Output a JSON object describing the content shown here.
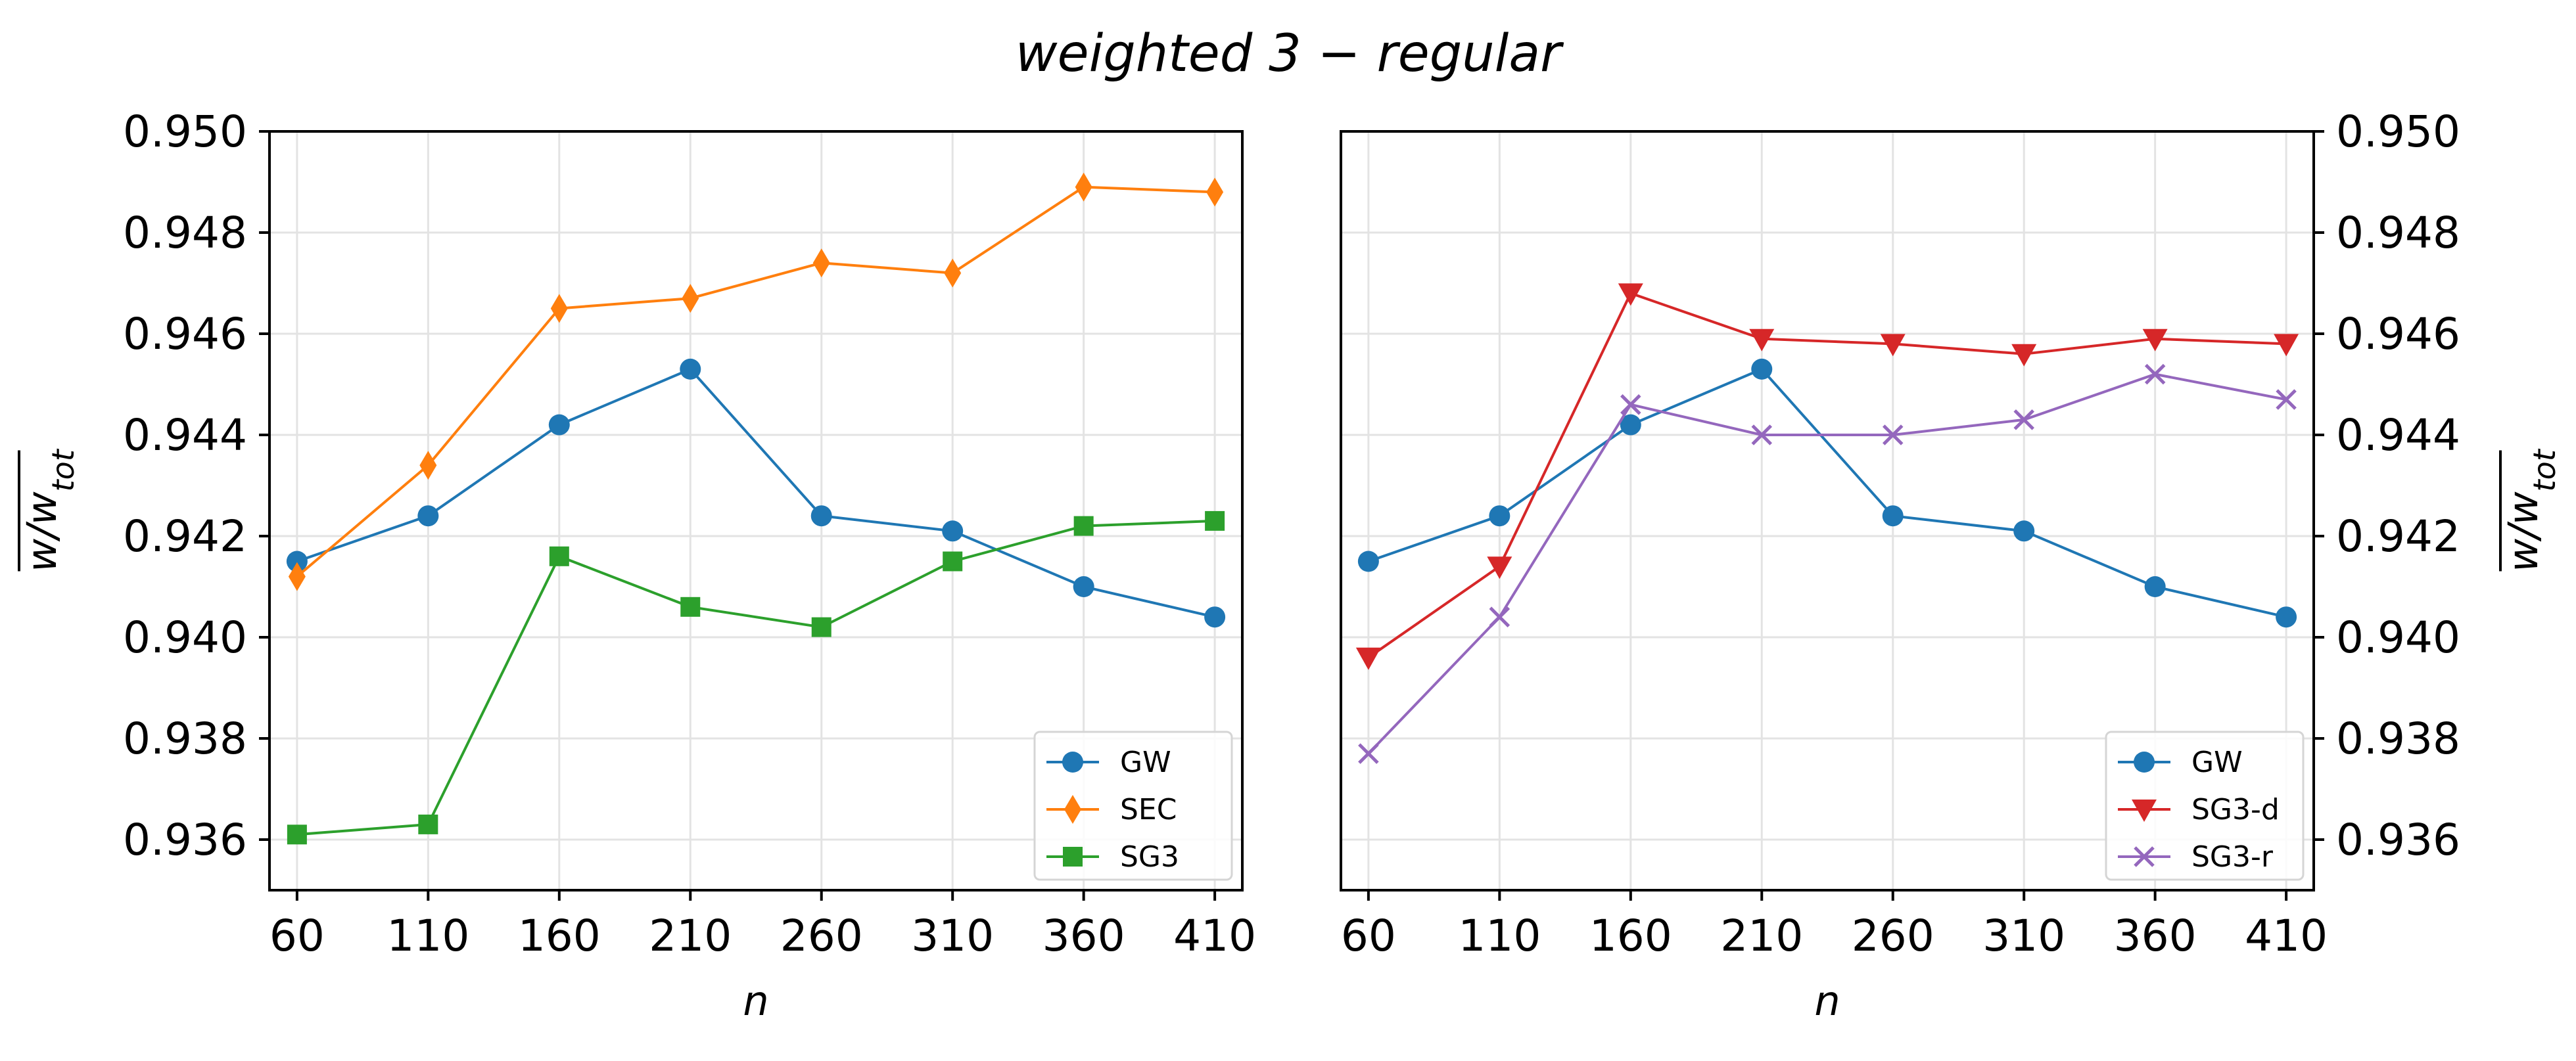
{
  "figure": {
    "title": "weighted 3 − regular"
  },
  "colors": {
    "GW": "#1f77b4",
    "SEC": "#ff7f0e",
    "SG3": "#2ca02c",
    "SG3-d": "#d62728",
    "SG3-r": "#9467bd"
  },
  "chart_data": [
    {
      "type": "line",
      "xlabel": "n",
      "ylabel": "w/w_tot (overlined)",
      "ylabel_main": "w/w",
      "ylabel_sub": "tot",
      "categories": [
        "60",
        "110",
        "160",
        "210",
        "260",
        "310",
        "360",
        "410"
      ],
      "x": [
        60,
        110,
        160,
        210,
        260,
        310,
        360,
        410
      ],
      "ylim": [
        0.935,
        0.95
      ],
      "yticks": [
        0.936,
        0.938,
        0.94,
        0.942,
        0.944,
        0.946,
        0.948,
        0.95
      ],
      "ytick_labels": [
        "0.936",
        "0.938",
        "0.940",
        "0.942",
        "0.944",
        "0.946",
        "0.948",
        "0.950"
      ],
      "yaxis_side": "left",
      "grid": true,
      "legend": "bottom-right",
      "series": [
        {
          "name": "GW",
          "marker": "circle",
          "values": [
            0.9415,
            0.9424,
            0.9442,
            0.9453,
            0.9424,
            0.9421,
            0.941,
            0.9404
          ]
        },
        {
          "name": "SEC",
          "marker": "thin_diamond",
          "values": [
            0.9412,
            0.9434,
            0.9465,
            0.9467,
            0.9474,
            0.9472,
            0.9489,
            0.9488
          ]
        },
        {
          "name": "SG3",
          "marker": "square",
          "values": [
            0.9361,
            0.9363,
            0.9416,
            0.9406,
            0.9402,
            0.9415,
            0.9422,
            0.9423
          ]
        }
      ]
    },
    {
      "type": "line",
      "xlabel": "n",
      "ylabel": "w/w_tot (overlined)",
      "ylabel_main": "w/w",
      "ylabel_sub": "tot",
      "categories": [
        "60",
        "110",
        "160",
        "210",
        "260",
        "310",
        "360",
        "410"
      ],
      "x": [
        60,
        110,
        160,
        210,
        260,
        310,
        360,
        410
      ],
      "ylim": [
        0.935,
        0.95
      ],
      "yticks": [
        0.936,
        0.938,
        0.94,
        0.942,
        0.944,
        0.946,
        0.948,
        0.95
      ],
      "ytick_labels": [
        "0.936",
        "0.938",
        "0.940",
        "0.942",
        "0.944",
        "0.946",
        "0.948",
        "0.950"
      ],
      "yaxis_side": "right",
      "grid": true,
      "legend": "bottom-right",
      "series": [
        {
          "name": "GW",
          "marker": "circle",
          "values": [
            0.9415,
            0.9424,
            0.9442,
            0.9453,
            0.9424,
            0.9421,
            0.941,
            0.9404
          ]
        },
        {
          "name": "SG3-d",
          "marker": "triangle_down",
          "values": [
            0.9396,
            0.9414,
            0.9468,
            0.9459,
            0.9458,
            0.9456,
            0.9459,
            0.9458
          ]
        },
        {
          "name": "SG3-r",
          "marker": "x",
          "values": [
            0.9377,
            0.9404,
            0.9446,
            0.944,
            0.944,
            0.9443,
            0.9452,
            0.9447
          ]
        }
      ]
    }
  ]
}
